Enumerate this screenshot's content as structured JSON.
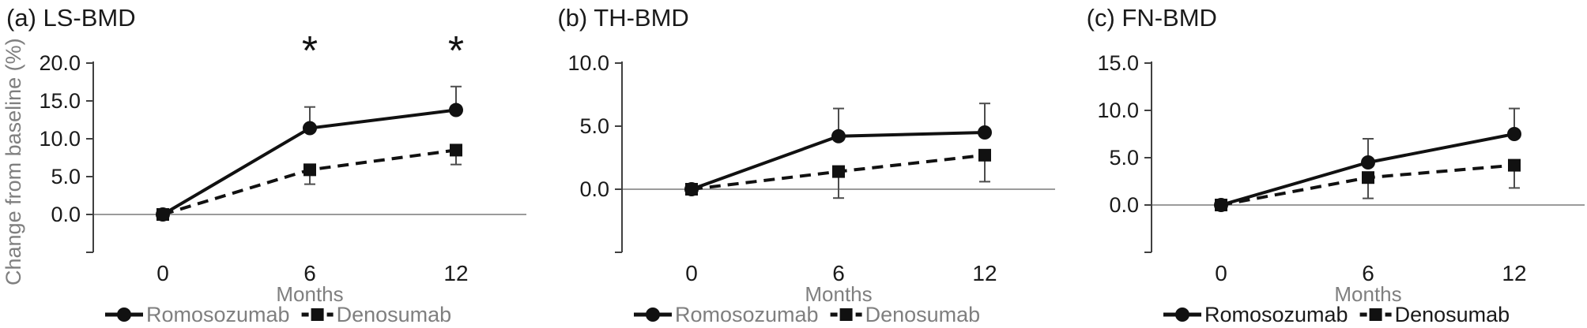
{
  "styles": {
    "data_black": "#111111",
    "axis_line": "#404040",
    "zero_line": "#7a7a7a",
    "error_bar": "#4d4d4d",
    "gray_text": "#7f7f7f",
    "tick_text": "#1a1a1a",
    "background": "#ffffff"
  },
  "chart_data": [
    {
      "type": "line",
      "title": "(a) LS-BMD",
      "ylabel": "Change from baseline (%)",
      "xlabel": "Months",
      "x": [
        0,
        6,
        12
      ],
      "xtick_labels": [
        "0",
        "6",
        "12"
      ],
      "ylim": [
        -5,
        20
      ],
      "yticks": [
        0,
        5,
        10,
        15,
        20
      ],
      "ytick_labels": [
        "0.0",
        "5.0",
        "10.0",
        "15.0",
        "20.0"
      ],
      "grid": false,
      "legend_position": "bottom",
      "legend_text_color": "#7f7f7f",
      "significance_marker": "*",
      "significance_at_x": [
        6,
        12
      ],
      "series": [
        {
          "name": "Romosozumab",
          "marker": "circle",
          "line": "solid",
          "values": [
            0.0,
            11.4,
            13.8
          ],
          "error": [
            0.0,
            2.8,
            3.1
          ],
          "error_direction": "up"
        },
        {
          "name": "Denosumab",
          "marker": "square",
          "line": "dashed",
          "values": [
            0.0,
            5.9,
            8.5
          ],
          "error": [
            0.0,
            1.9,
            1.9
          ],
          "error_direction": "down"
        }
      ]
    },
    {
      "type": "line",
      "title": "(b) TH-BMD",
      "ylabel": "",
      "xlabel": "Months",
      "x": [
        0,
        6,
        12
      ],
      "xtick_labels": [
        "0",
        "6",
        "12"
      ],
      "ylim": [
        -5,
        10
      ],
      "yticks": [
        0,
        5,
        10
      ],
      "ytick_labels": [
        "0.0",
        "5.0",
        "10.0"
      ],
      "grid": false,
      "legend_position": "bottom",
      "legend_text_color": "#7f7f7f",
      "significance_marker": "*",
      "significance_at_x": [],
      "series": [
        {
          "name": "Romosozumab",
          "marker": "circle",
          "line": "solid",
          "values": [
            0.0,
            4.2,
            4.5
          ],
          "error": [
            0.0,
            2.2,
            2.3
          ],
          "error_direction": "up"
        },
        {
          "name": "Denosumab",
          "marker": "square",
          "line": "dashed",
          "values": [
            0.0,
            1.4,
            2.7
          ],
          "error": [
            0.0,
            2.1,
            2.1
          ],
          "error_direction": "down"
        }
      ]
    },
    {
      "type": "line",
      "title": "(c) FN-BMD",
      "ylabel": "",
      "xlabel": "Months",
      "x": [
        0,
        6,
        12
      ],
      "xtick_labels": [
        "0",
        "6",
        "12"
      ],
      "ylim": [
        -5,
        15
      ],
      "yticks": [
        0,
        5,
        10,
        15
      ],
      "ytick_labels": [
        "0.0",
        "5.0",
        "10.0",
        "15.0"
      ],
      "grid": false,
      "legend_position": "bottom",
      "legend_text_color": "#1a1a1a",
      "significance_marker": "*",
      "significance_at_x": [],
      "series": [
        {
          "name": "Romosozumab",
          "marker": "circle",
          "line": "solid",
          "values": [
            0.0,
            4.5,
            7.5
          ],
          "error": [
            0.0,
            2.5,
            2.7
          ],
          "error_direction": "up"
        },
        {
          "name": "Denosumab",
          "marker": "square",
          "line": "dashed",
          "values": [
            0.0,
            2.9,
            4.2
          ],
          "error": [
            0.0,
            2.2,
            2.4
          ],
          "error_direction": "down"
        }
      ]
    }
  ]
}
